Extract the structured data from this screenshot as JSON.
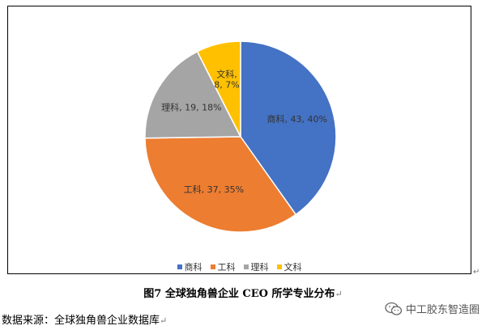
{
  "chart_data": {
    "type": "pie",
    "categories": [
      "商科",
      "工科",
      "理科",
      "文科"
    ],
    "values": [
      43,
      37,
      19,
      8
    ],
    "percents": [
      "40%",
      "35%",
      "18%",
      "7%"
    ],
    "colors": [
      "#4472C4",
      "#ED7D31",
      "#A5A5A5",
      "#FFC000"
    ],
    "data_labels": [
      "商科, 43, 40%",
      "工科, 37, 35%",
      "理科, 19, 18%",
      "文科,\n8, 7%"
    ],
    "legend": {
      "position": "bottom",
      "entries": [
        "商科",
        "工科",
        "理科",
        "文科"
      ]
    }
  },
  "caption": "图7 全球独角兽企业 CEO 所学专业分布",
  "source": "数据来源：全球独角兽企业数据库",
  "return_mark": "↵",
  "watermark": {
    "text": "中工胶东智造圈",
    "icon": "wechat-icon"
  }
}
